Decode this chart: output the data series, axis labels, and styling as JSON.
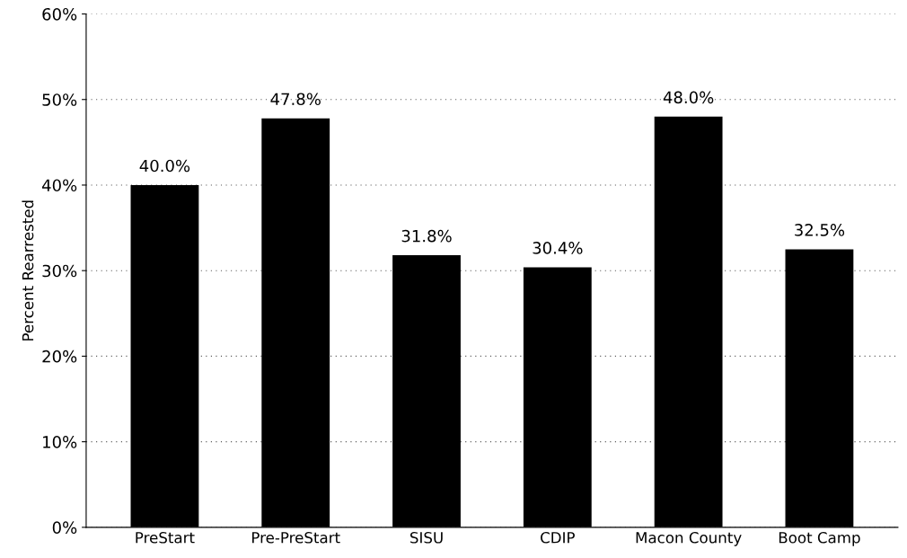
{
  "chart_data": {
    "type": "bar",
    "ylabel": "Percent Rearrested",
    "categories": [
      "PreStart",
      "Pre-PreStart",
      "SISU",
      "CDIP",
      "Macon County",
      "Boot Camp"
    ],
    "values": [
      40.0,
      47.8,
      31.8,
      30.4,
      48.0,
      32.5
    ],
    "value_labels": [
      "40.0%",
      "47.8%",
      "31.8%",
      "30.4%",
      "48.0%",
      "32.5%"
    ],
    "color": "#000000",
    "ylim": [
      0,
      60
    ],
    "yticks": [
      {
        "value": 0,
        "label": "0%"
      },
      {
        "value": 10,
        "label": "10%"
      },
      {
        "value": 20,
        "label": "20%"
      },
      {
        "value": 30,
        "label": "30%"
      },
      {
        "value": 40,
        "label": "40%"
      },
      {
        "value": 50,
        "label": "50%"
      },
      {
        "value": 60,
        "label": "60%"
      }
    ],
    "grid": "y"
  }
}
